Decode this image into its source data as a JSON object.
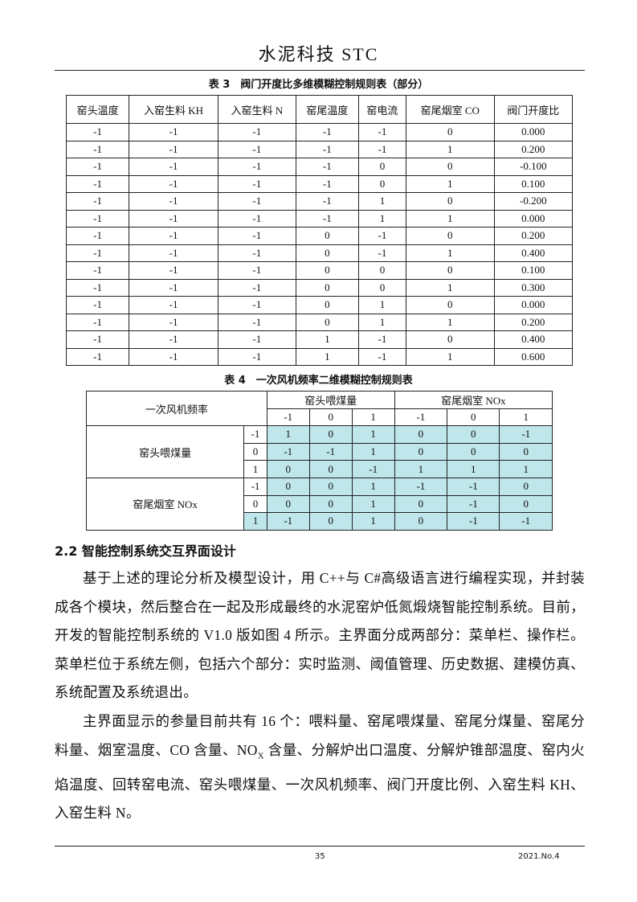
{
  "header": {
    "journal": "水泥科技 STC"
  },
  "table3": {
    "caption": "表 3　阀门开度比多维模糊控制规则表（部分）",
    "columns": [
      "窑头温度",
      "入窑生料 KH",
      "入窑生料 N",
      "窑尾温度",
      "窑电流",
      "窑尾烟室 CO",
      "阀门开度比"
    ],
    "rows": [
      [
        "-1",
        "-1",
        "-1",
        "-1",
        "-1",
        "0",
        "0.000"
      ],
      [
        "-1",
        "-1",
        "-1",
        "-1",
        "-1",
        "1",
        "0.200"
      ],
      [
        "-1",
        "-1",
        "-1",
        "-1",
        "0",
        "0",
        "-0.100"
      ],
      [
        "-1",
        "-1",
        "-1",
        "-1",
        "0",
        "1",
        "0.100"
      ],
      [
        "-1",
        "-1",
        "-1",
        "-1",
        "1",
        "0",
        "-0.200"
      ],
      [
        "-1",
        "-1",
        "-1",
        "-1",
        "1",
        "1",
        "0.000"
      ],
      [
        "-1",
        "-1",
        "-1",
        "0",
        "-1",
        "0",
        "0.200"
      ],
      [
        "-1",
        "-1",
        "-1",
        "0",
        "-1",
        "1",
        "0.400"
      ],
      [
        "-1",
        "-1",
        "-1",
        "0",
        "0",
        "0",
        "0.100"
      ],
      [
        "-1",
        "-1",
        "-1",
        "0",
        "0",
        "1",
        "0.300"
      ],
      [
        "-1",
        "-1",
        "-1",
        "0",
        "1",
        "0",
        "0.000"
      ],
      [
        "-1",
        "-1",
        "-1",
        "0",
        "1",
        "1",
        "0.200"
      ],
      [
        "-1",
        "-1",
        "-1",
        "1",
        "-1",
        "0",
        "0.400"
      ],
      [
        "-1",
        "-1",
        "-1",
        "1",
        "-1",
        "1",
        "0.600"
      ]
    ]
  },
  "table4": {
    "caption": "表 4　一次风机频率二维模糊控制规则表",
    "corner": "一次风机频率",
    "col_groups": [
      "窑头喂煤量",
      "窑尾烟室 NOx"
    ],
    "col_levels": [
      "-1",
      "0",
      "1",
      "-1",
      "0",
      "1"
    ],
    "row_groups": [
      {
        "label": "窑头喂煤量",
        "rows": [
          {
            "level": "-1",
            "values": [
              "1",
              "0",
              "1",
              "0",
              "0",
              "-1"
            ]
          },
          {
            "level": "0",
            "values": [
              "-1",
              "-1",
              "1",
              "0",
              "0",
              "0"
            ]
          },
          {
            "level": "1",
            "values": [
              "0",
              "0",
              "-1",
              "1",
              "1",
              "1"
            ]
          }
        ]
      },
      {
        "label": "窑尾烟室 NOx",
        "rows": [
          {
            "level": "-1",
            "values": [
              "0",
              "0",
              "1",
              "-1",
              "-1",
              "0"
            ]
          },
          {
            "level": "0",
            "values": [
              "0",
              "0",
              "1",
              "0",
              "-1",
              "0"
            ]
          },
          {
            "level": "1",
            "values": [
              "-1",
              "0",
              "1",
              "0",
              "-1",
              "-1"
            ]
          }
        ]
      }
    ],
    "highlight_color": "#bfe6ea"
  },
  "section": {
    "heading": "2.2  智能控制系统交互界面设计"
  },
  "paragraphs": [
    "基于上述的理论分析及模型设计，用 C++与 C#高级语言进行编程实现，并封装成各个模块，然后整合在一起及形成最终的水泥窑炉低氮煅烧智能控制系统。目前，开发的智能控制系统的 V1.0 版如图 4 所示。主界面分成两部分：菜单栏、操作栏。菜单栏位于系统左侧，包括六个部分：实时监测、阈值管理、历史数据、建模仿真、系统配置及系统退出。"
  ],
  "p2": {
    "a": "主界面显示的参量目前共有 16 个：喂料量、窑尾喂煤量、窑尾分煤量、窑尾分料量、烟室温度、CO 含量、NO",
    "sub": "X",
    "b": " 含量、分解炉出口温度、分解炉锥部温度、窑内火焰温度、回转窑电流、窑头喂煤量、一次风机频率、阀门开度比例、入窑生料 KH、入窑生料 N。"
  },
  "footer": {
    "page": "35",
    "issue": "2021.No.4"
  }
}
